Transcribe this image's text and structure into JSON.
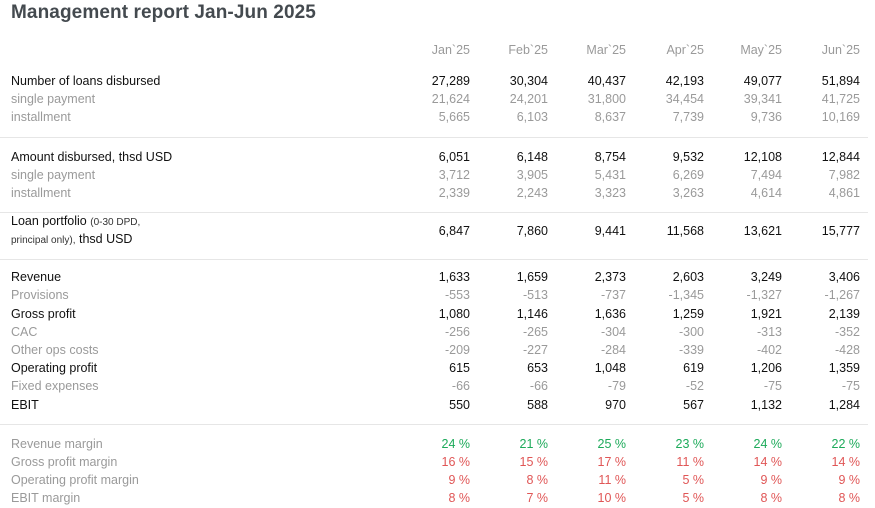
{
  "title": "Management report Jan-Jun 2025",
  "months": [
    "Jan`25",
    "Feb`25",
    "Mar`25",
    "Apr`25",
    "May`25",
    "Jun`25"
  ],
  "sections": {
    "loans": [
      {
        "label": "Number of loans disbursed",
        "values": [
          "27,289",
          "30,304",
          "40,437",
          "42,193",
          "49,077",
          "51,894"
        ]
      },
      {
        "label": "single payment",
        "values": [
          "21,624",
          "24,201",
          "31,800",
          "34,454",
          "39,341",
          "41,725"
        ]
      },
      {
        "label": "installment",
        "values": [
          "5,665",
          "6,103",
          "8,637",
          "7,739",
          "9,736",
          "10,169"
        ]
      }
    ],
    "amount": [
      {
        "label": "Amount disbursed, thsd USD",
        "values": [
          "6,051",
          "6,148",
          "8,754",
          "9,532",
          "12,108",
          "12,844"
        ]
      },
      {
        "label": "single payment",
        "values": [
          "3,712",
          "3,905",
          "5,431",
          "6,269",
          "7,494",
          "7,982"
        ]
      },
      {
        "label": "installment",
        "values": [
          "2,339",
          "2,243",
          "3,323",
          "3,263",
          "4,614",
          "4,861"
        ]
      }
    ],
    "portfolio": {
      "label_main": "Loan portfolio",
      "label_note": "(0-30 DPD,",
      "label_note2": "principal only),",
      "label_tail": "thsd USD",
      "values": [
        "6,847",
        "7,860",
        "9,441",
        "11,568",
        "13,621",
        "15,777"
      ]
    },
    "pnl": [
      {
        "label": "Revenue",
        "values": [
          "1,633",
          "1,659",
          "2,373",
          "2,603",
          "3,249",
          "3,406"
        ]
      },
      {
        "label": "Provisions",
        "values": [
          "-553",
          "-513",
          "-737",
          "-1,345",
          "-1,327",
          "-1,267"
        ]
      },
      {
        "label": "Gross profit",
        "values": [
          "1,080",
          "1,146",
          "1,636",
          "1,259",
          "1,921",
          "2,139"
        ]
      },
      {
        "label": "CAC",
        "values": [
          "-256",
          "-265",
          "-304",
          "-300",
          "-313",
          "-352"
        ]
      },
      {
        "label": "Other ops costs",
        "values": [
          "-209",
          "-227",
          "-284",
          "-339",
          "-402",
          "-428"
        ]
      },
      {
        "label": "Operating profit",
        "values": [
          "615",
          "653",
          "1,048",
          "619",
          "1,206",
          "1,359"
        ]
      },
      {
        "label": "Fixed expenses",
        "values": [
          "-66",
          "-66",
          "-79",
          "-52",
          "-75",
          "-75"
        ]
      },
      {
        "label": "EBIT",
        "values": [
          "550",
          "588",
          "970",
          "567",
          "1,132",
          "1,284"
        ]
      }
    ],
    "margins": [
      {
        "label": "Revenue margin",
        "values": [
          "24 %",
          "21 %",
          "25 %",
          "23 %",
          "24 %",
          "22 %"
        ]
      },
      {
        "label": "Gross profit margin",
        "values": [
          "16 %",
          "15 %",
          "17 %",
          "11 %",
          "14 %",
          "14 %"
        ]
      },
      {
        "label": "Operating profit margin",
        "values": [
          "9 %",
          "8 %",
          "11 %",
          "5 %",
          "9 %",
          "9 %"
        ]
      },
      {
        "label": "EBIT margin",
        "values": [
          "8 %",
          "7 %",
          "10 %",
          "5 %",
          "8 %",
          "8 %"
        ]
      }
    ]
  },
  "colors": {
    "positive": "#1daa5a",
    "negative": "#e05656",
    "muted": "#9a9a9a"
  }
}
